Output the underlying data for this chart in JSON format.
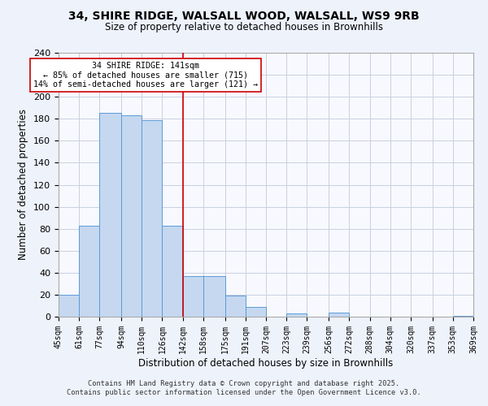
{
  "title": "34, SHIRE RIDGE, WALSALL WOOD, WALSALL, WS9 9RB",
  "subtitle": "Size of property relative to detached houses in Brownhills",
  "xlabel": "Distribution of detached houses by size in Brownhills",
  "ylabel": "Number of detached properties",
  "bar_edges": [
    45,
    61,
    77,
    94,
    110,
    126,
    142,
    158,
    175,
    191,
    207,
    223,
    239,
    256,
    272,
    288,
    304,
    320,
    337,
    353,
    369
  ],
  "bar_heights": [
    20,
    83,
    185,
    183,
    179,
    83,
    37,
    37,
    19,
    9,
    0,
    3,
    0,
    4,
    0,
    0,
    0,
    0,
    0,
    1
  ],
  "tick_labels": [
    "45sqm",
    "61sqm",
    "77sqm",
    "94sqm",
    "110sqm",
    "126sqm",
    "142sqm",
    "158sqm",
    "175sqm",
    "191sqm",
    "207sqm",
    "223sqm",
    "239sqm",
    "256sqm",
    "272sqm",
    "288sqm",
    "304sqm",
    "320sqm",
    "337sqm",
    "353sqm",
    "369sqm"
  ],
  "bar_color": "#c5d8f0",
  "bar_edge_color": "#5b9bd5",
  "vline_x": 142,
  "vline_color": "#cc0000",
  "ylim": [
    0,
    240
  ],
  "yticks": [
    0,
    20,
    40,
    60,
    80,
    100,
    120,
    140,
    160,
    180,
    200,
    220,
    240
  ],
  "annotation_title": "34 SHIRE RIDGE: 141sqm",
  "annotation_line1": "← 85% of detached houses are smaller (715)",
  "annotation_line2": "14% of semi-detached houses are larger (121) →",
  "annotation_box_color": "#ffffff",
  "annotation_box_edge": "#cc0000",
  "footer1": "Contains HM Land Registry data © Crown copyright and database right 2025.",
  "footer2": "Contains public sector information licensed under the Open Government Licence v3.0.",
  "bg_color": "#eef2fb",
  "plot_bg_color": "#f8f9ff",
  "grid_color": "#c8d0e0"
}
